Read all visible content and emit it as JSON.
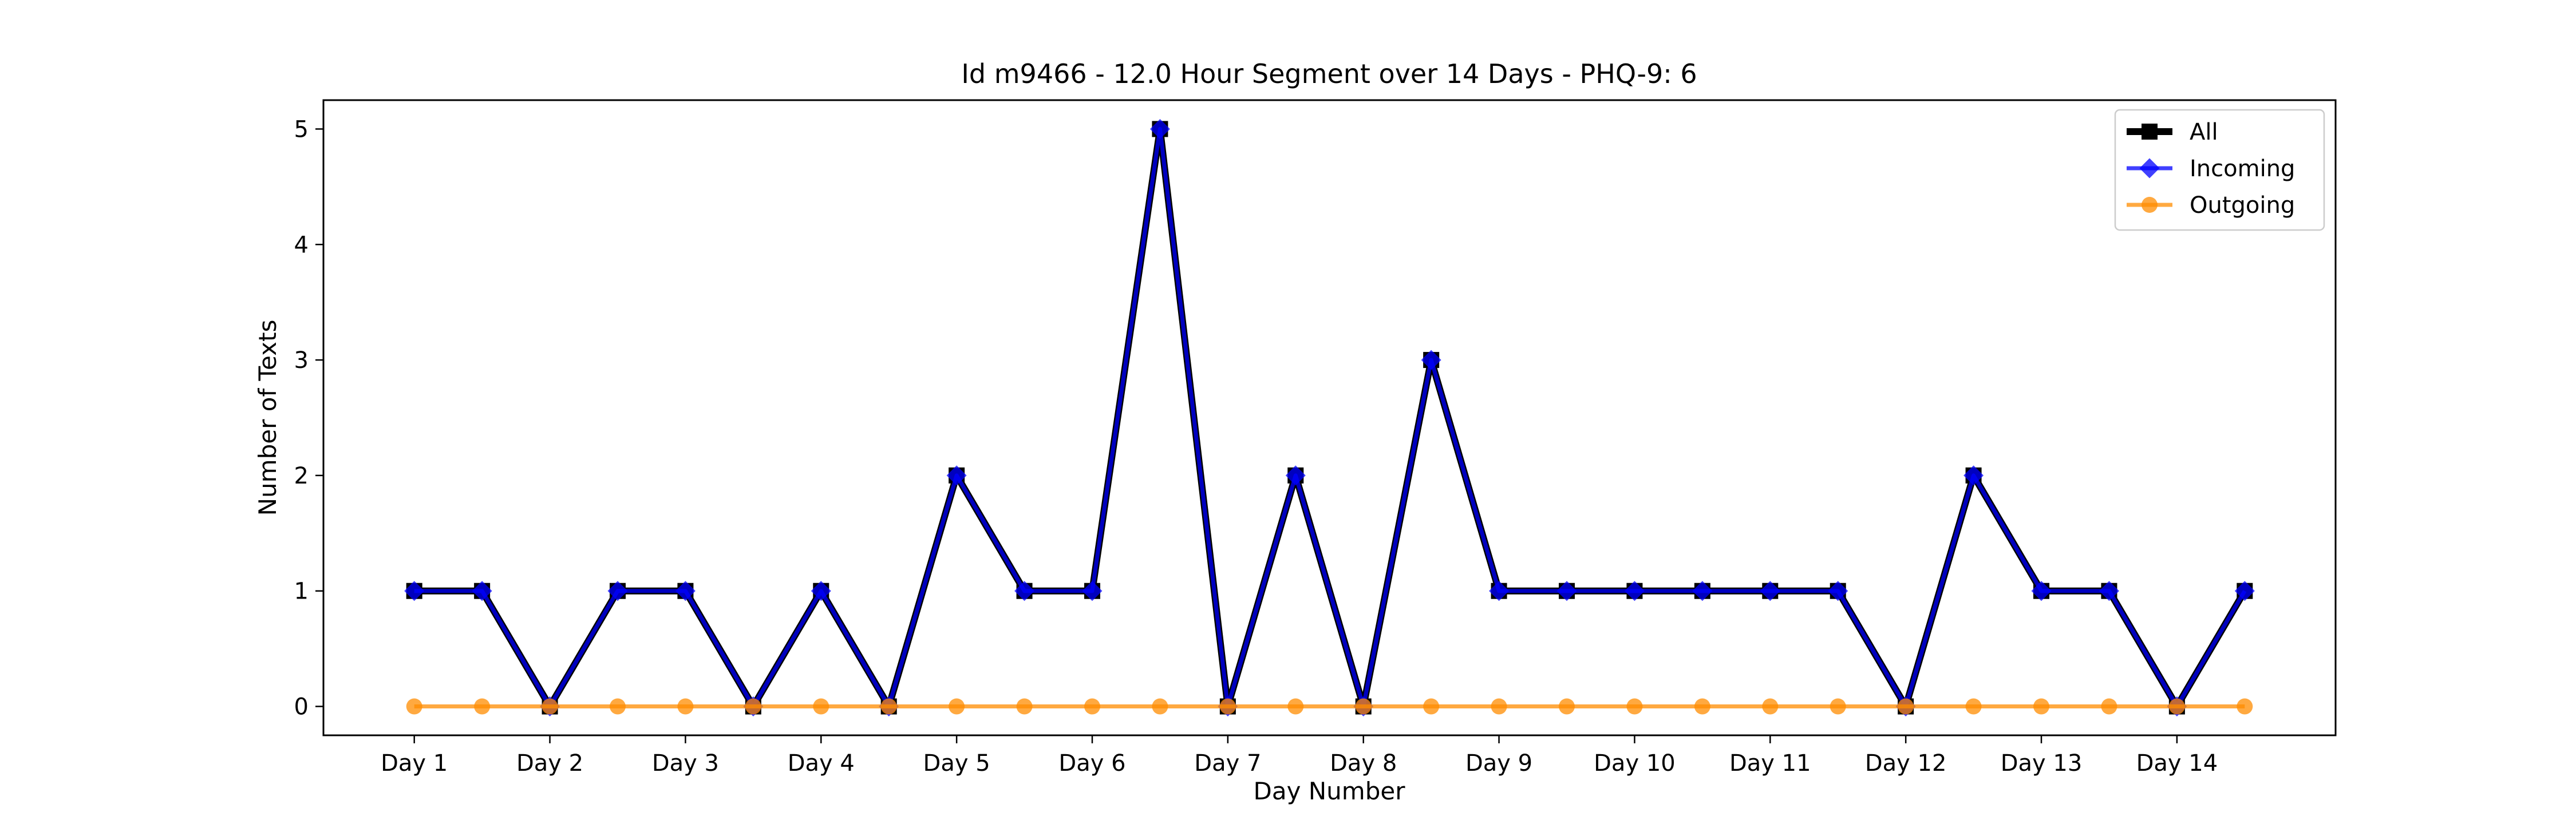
{
  "chart_data": {
    "type": "line",
    "title": "Id m9466 - 12.0 Hour Segment over 14 Days - PHQ-9: 6",
    "xlabel": "Day Number",
    "ylabel": "Number of Texts",
    "x_ticks": [
      "Day 1",
      "Day 2",
      "Day 3",
      "Day 4",
      "Day 5",
      "Day 6",
      "Day 7",
      "Day 8",
      "Day 9",
      "Day 10",
      "Day 11",
      "Day 12",
      "Day 13",
      "Day 14"
    ],
    "x": [
      1,
      1.5,
      2,
      2.5,
      3,
      3.5,
      4,
      4.5,
      5,
      5.5,
      6,
      6.5,
      7,
      7.5,
      8,
      8.5,
      9,
      9.5,
      10,
      10.5,
      11,
      11.5,
      12,
      12.5,
      13,
      13.5,
      14,
      14.5
    ],
    "xlim": [
      0.33,
      15.17
    ],
    "ylim": [
      -0.25,
      5.25
    ],
    "y_ticks": [
      0,
      1,
      2,
      3,
      4,
      5
    ],
    "grid": false,
    "legend_position": "top-right",
    "series": [
      {
        "name": "All",
        "color": "#000000",
        "marker": "square",
        "values": [
          1,
          1,
          0,
          1,
          1,
          0,
          1,
          0,
          2,
          1,
          1,
          5,
          0,
          2,
          0,
          3,
          1,
          1,
          1,
          1,
          1,
          1,
          0,
          2,
          1,
          1,
          0,
          1
        ]
      },
      {
        "name": "Incoming",
        "color": "#0000ff",
        "marker": "diamond",
        "values": [
          1,
          1,
          0,
          1,
          1,
          0,
          1,
          0,
          2,
          1,
          1,
          5,
          0,
          2,
          0,
          3,
          1,
          1,
          1,
          1,
          1,
          1,
          0,
          2,
          1,
          1,
          0,
          1
        ]
      },
      {
        "name": "Outgoing",
        "color": "#ff8c00",
        "marker": "circle",
        "values": [
          0,
          0,
          0,
          0,
          0,
          0,
          0,
          0,
          0,
          0,
          0,
          0,
          0,
          0,
          0,
          0,
          0,
          0,
          0,
          0,
          0,
          0,
          0,
          0,
          0,
          0,
          0,
          0
        ]
      }
    ]
  }
}
